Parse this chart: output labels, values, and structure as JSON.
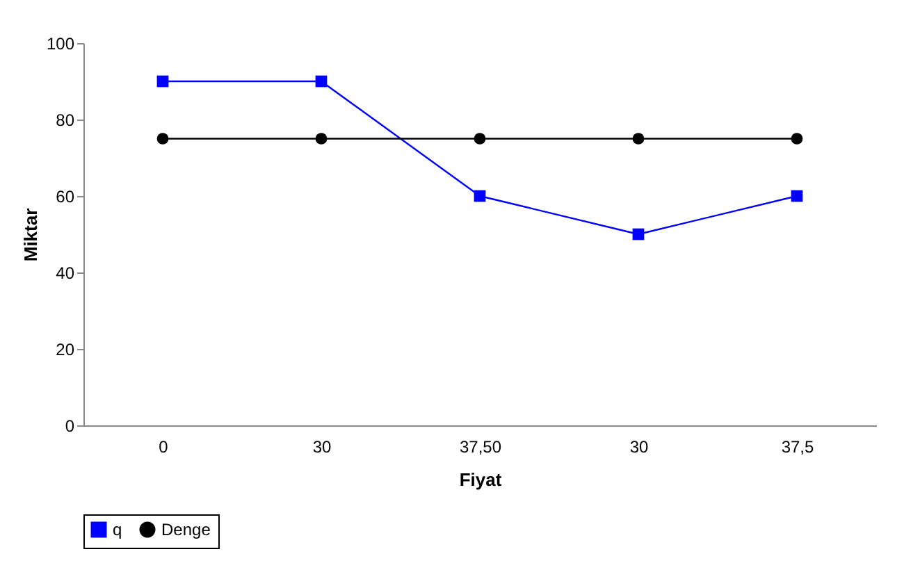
{
  "chart_data": {
    "type": "line",
    "xlabel": "Fiyat",
    "ylabel": "Miktar",
    "categories": [
      "0",
      "30",
      "37,50",
      "30",
      "37,5"
    ],
    "series": [
      {
        "name": "q",
        "color": "#0000ff",
        "marker": "square",
        "values": [
          90,
          90,
          60,
          50,
          60
        ]
      },
      {
        "name": "Denge",
        "color": "#000000",
        "marker": "circle",
        "values": [
          75,
          75,
          75,
          75,
          75
        ]
      }
    ],
    "ylim": [
      0,
      100
    ],
    "yticks": [
      0,
      20,
      40,
      60,
      80,
      100
    ],
    "grid": false,
    "legend": "bottom",
    "line_style": "solid"
  }
}
